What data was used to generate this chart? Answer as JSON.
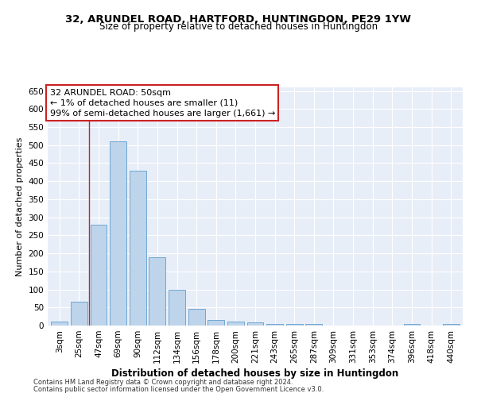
{
  "title1": "32, ARUNDEL ROAD, HARTFORD, HUNTINGDON, PE29 1YW",
  "title2": "Size of property relative to detached houses in Huntingdon",
  "xlabel": "Distribution of detached houses by size in Huntingdon",
  "ylabel": "Number of detached properties",
  "categories": [
    "3sqm",
    "25sqm",
    "47sqm",
    "69sqm",
    "90sqm",
    "112sqm",
    "134sqm",
    "156sqm",
    "178sqm",
    "200sqm",
    "221sqm",
    "243sqm",
    "265sqm",
    "287sqm",
    "309sqm",
    "331sqm",
    "353sqm",
    "374sqm",
    "396sqm",
    "418sqm",
    "440sqm"
  ],
  "values": [
    10,
    65,
    280,
    510,
    430,
    190,
    100,
    46,
    15,
    11,
    8,
    5,
    5,
    5,
    0,
    0,
    0,
    0,
    5,
    0,
    5
  ],
  "bar_color": "#bdd4ea",
  "bar_edge_color": "#6fa8d4",
  "vline_color": "#cc2222",
  "vline_x": 1.5,
  "annotation_box_text": "32 ARUNDEL ROAD: 50sqm\n← 1% of detached houses are smaller (11)\n99% of semi-detached houses are larger (1,661) →",
  "annotation_box_color": "#ffffff",
  "annotation_box_edge_color": "#cc2222",
  "annotation_fontsize": 8,
  "ylim": [
    0,
    660
  ],
  "yticks": [
    0,
    50,
    100,
    150,
    200,
    250,
    300,
    350,
    400,
    450,
    500,
    550,
    600,
    650
  ],
  "background_color": "#e8eef8",
  "grid_color": "#ffffff",
  "footer1": "Contains HM Land Registry data © Crown copyright and database right 2024.",
  "footer2": "Contains public sector information licensed under the Open Government Licence v3.0.",
  "title1_fontsize": 9.5,
  "title2_fontsize": 8.5,
  "xlabel_fontsize": 8.5,
  "ylabel_fontsize": 8,
  "tick_fontsize": 7.5,
  "footer_fontsize": 6
}
